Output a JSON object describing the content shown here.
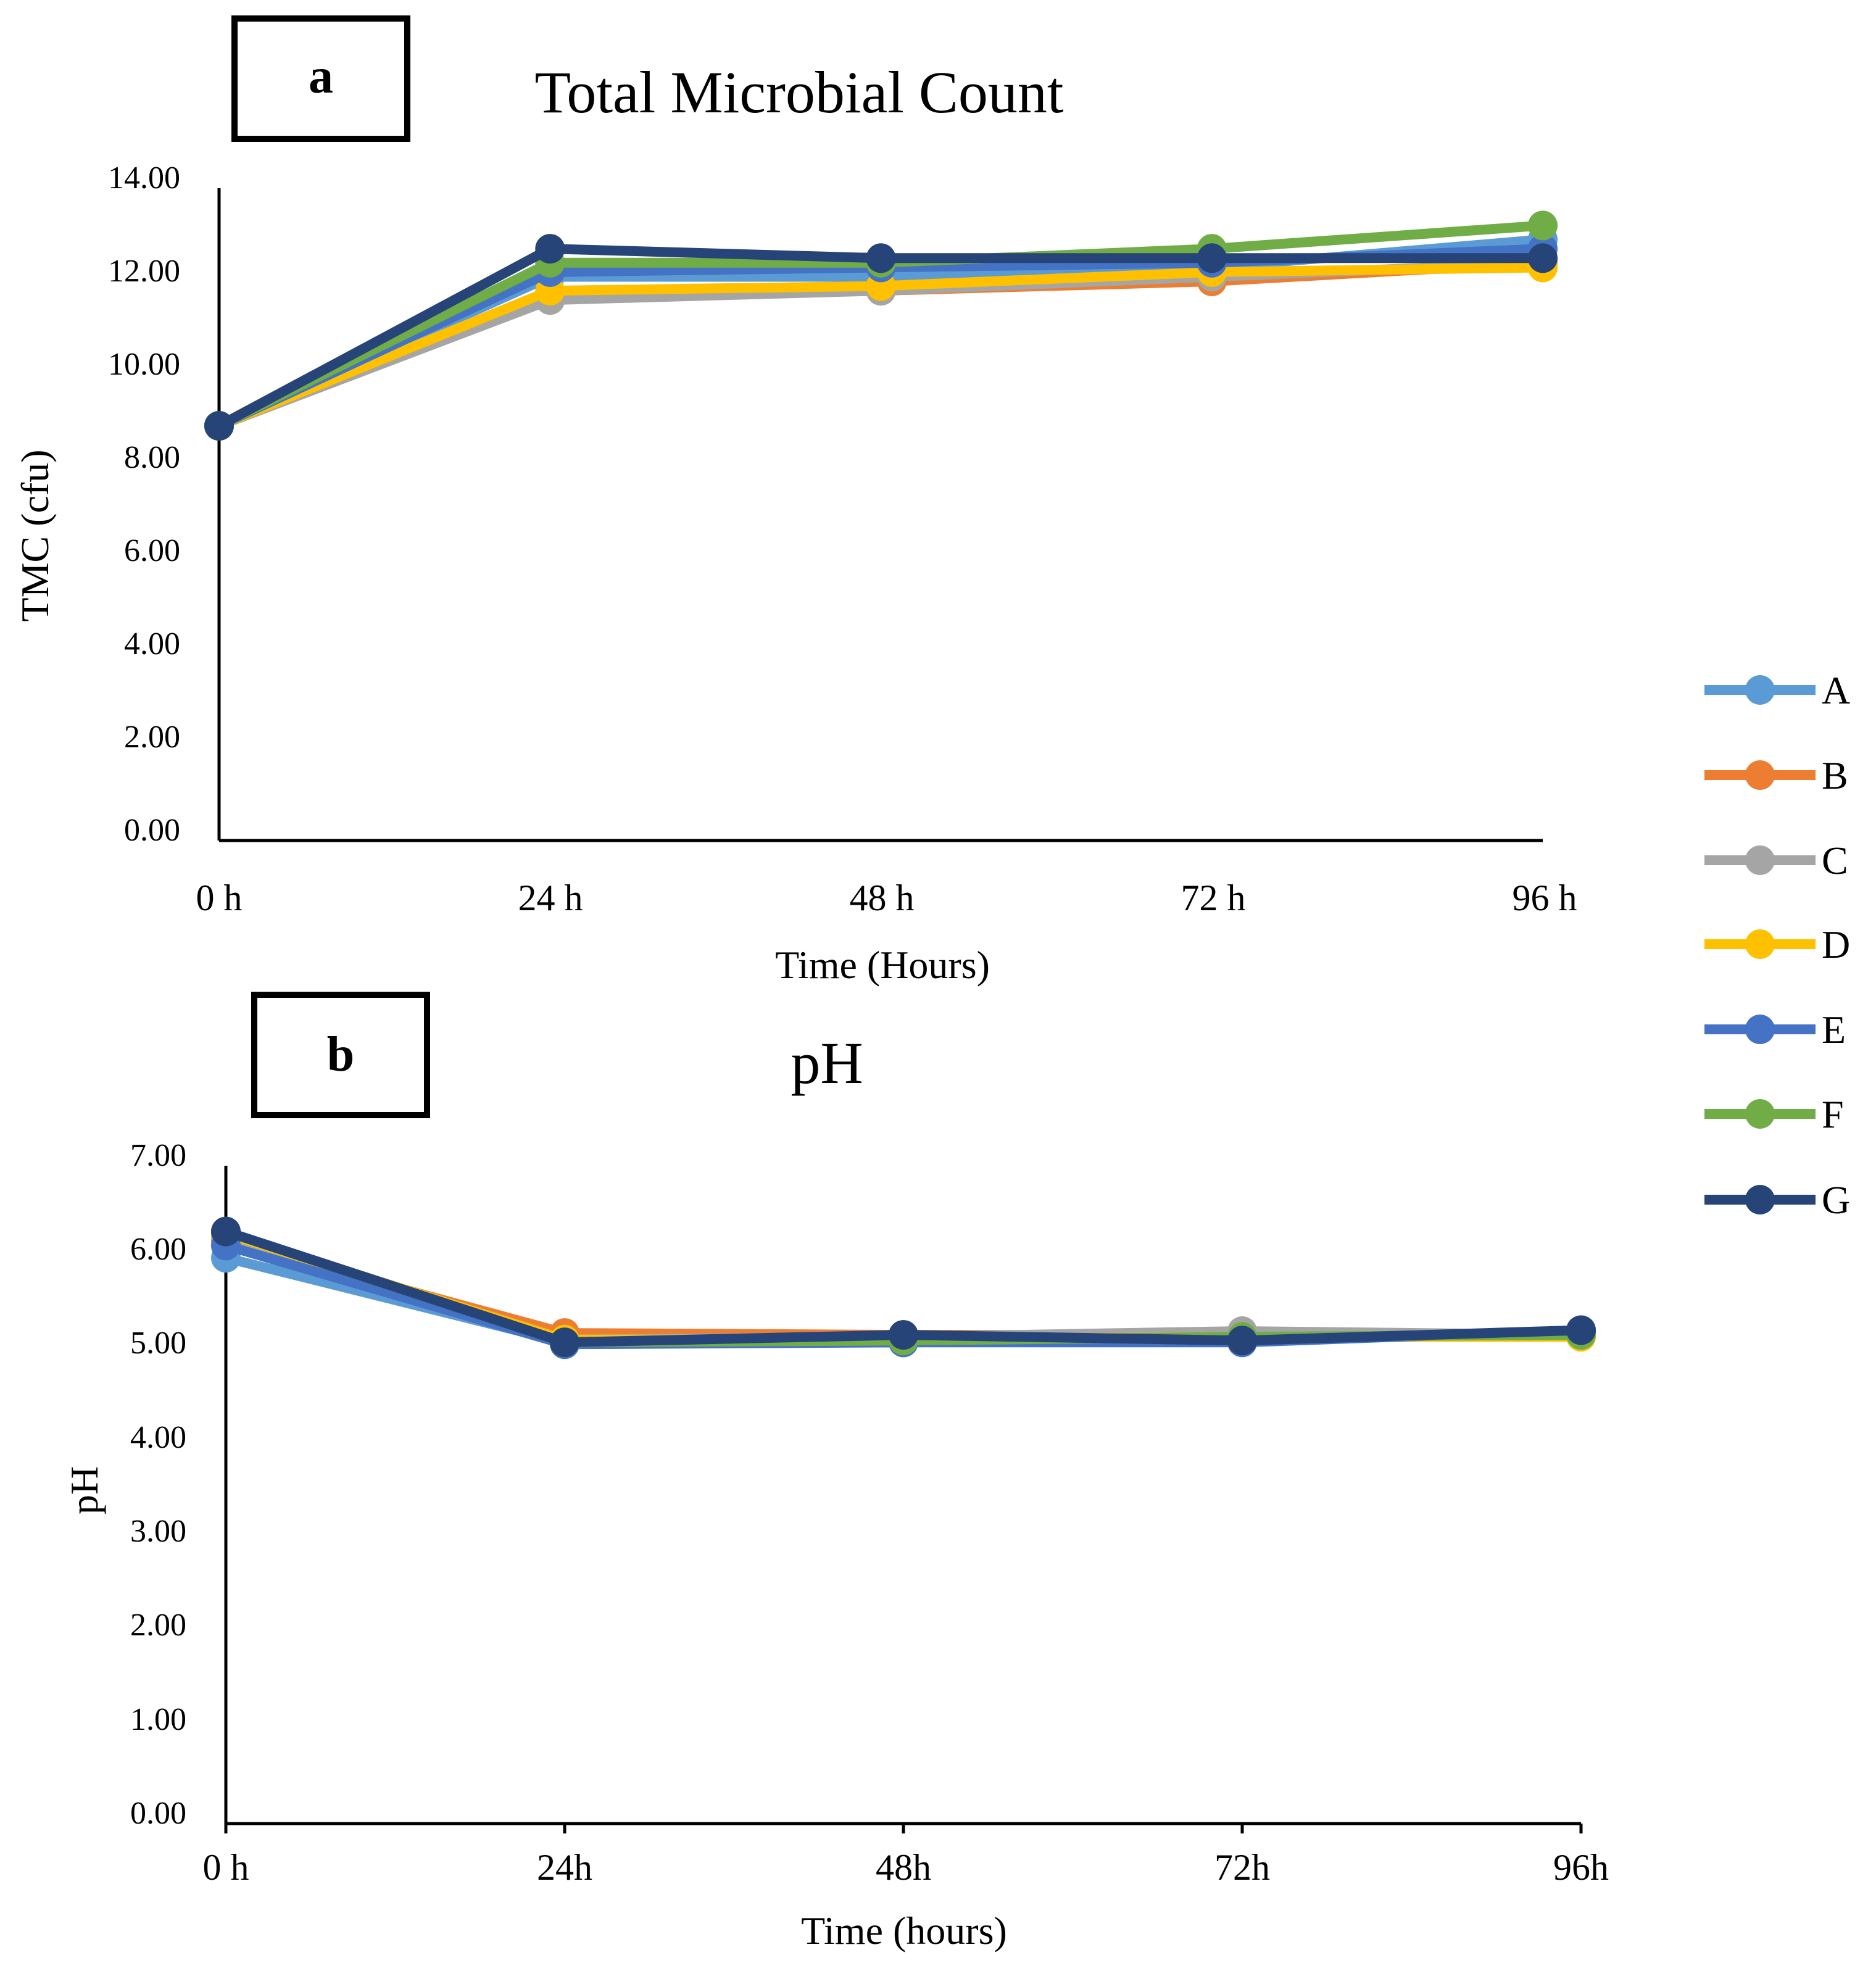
{
  "figure": {
    "legend": [
      "A",
      "B",
      "C",
      "D",
      "E",
      "F",
      "G"
    ]
  },
  "series_colors": {
    "A": "#5B9BD5",
    "B": "#ED7D31",
    "C": "#A5A5A5",
    "D": "#FFC000",
    "E": "#4472C4",
    "F": "#70AD47",
    "G": "#264478"
  },
  "chart_data": [
    {
      "type": "line",
      "panel_label": "a",
      "title": "Total Microbial Count",
      "xlabel": "Time (Hours)",
      "ylabel": "TMC (cfu)",
      "categories": [
        "0 h",
        "24 h",
        "48 h",
        "72 h",
        "96 h"
      ],
      "ylim": [
        0,
        14
      ],
      "yticks": [
        "0.00",
        "2.00",
        "4.00",
        "6.00",
        "8.00",
        "10.00",
        "12.00",
        "14.00"
      ],
      "grid": false,
      "legend_position": "right",
      "series": [
        {
          "name": "A",
          "values": [
            8.9,
            12.1,
            12.1,
            12.3,
            12.9
          ]
        },
        {
          "name": "B",
          "values": [
            8.9,
            11.7,
            11.8,
            12.0,
            12.4
          ]
        },
        {
          "name": "C",
          "values": [
            8.9,
            11.6,
            11.8,
            12.1,
            12.4
          ]
        },
        {
          "name": "D",
          "values": [
            8.9,
            11.8,
            11.9,
            12.2,
            12.3
          ]
        },
        {
          "name": "E",
          "values": [
            8.9,
            12.2,
            12.3,
            12.4,
            12.7
          ]
        },
        {
          "name": "F",
          "values": [
            8.9,
            12.4,
            12.4,
            12.7,
            13.2
          ]
        },
        {
          "name": "G",
          "values": [
            8.9,
            12.7,
            12.5,
            12.5,
            12.5
          ]
        }
      ]
    },
    {
      "type": "line",
      "panel_label": "b",
      "title": "pH",
      "xlabel": "Time (hours)",
      "ylabel": "pH",
      "categories": [
        "0 h",
        "24h",
        "48h",
        "72h",
        "96h"
      ],
      "ylim": [
        0,
        7
      ],
      "yticks": [
        "0.00",
        "1.00",
        "2.00",
        "3.00",
        "4.00",
        "5.00",
        "6.00",
        "7.00"
      ],
      "grid": false,
      "legend_position": "right",
      "series": [
        {
          "name": "A",
          "values": [
            6.02,
            5.12,
            5.12,
            5.18,
            5.22
          ]
        },
        {
          "name": "B",
          "values": [
            6.2,
            5.22,
            5.2,
            5.2,
            5.22
          ]
        },
        {
          "name": "C",
          "values": [
            6.25,
            5.15,
            5.18,
            5.24,
            5.2
          ]
        },
        {
          "name": "D",
          "values": [
            6.28,
            5.15,
            5.15,
            5.18,
            5.18
          ]
        },
        {
          "name": "E",
          "values": [
            6.15,
            5.1,
            5.12,
            5.12,
            5.25
          ]
        },
        {
          "name": "F",
          "values": [
            6.3,
            5.12,
            5.14,
            5.18,
            5.2
          ]
        },
        {
          "name": "G",
          "values": [
            6.3,
            5.12,
            5.2,
            5.14,
            5.25
          ]
        }
      ]
    }
  ]
}
